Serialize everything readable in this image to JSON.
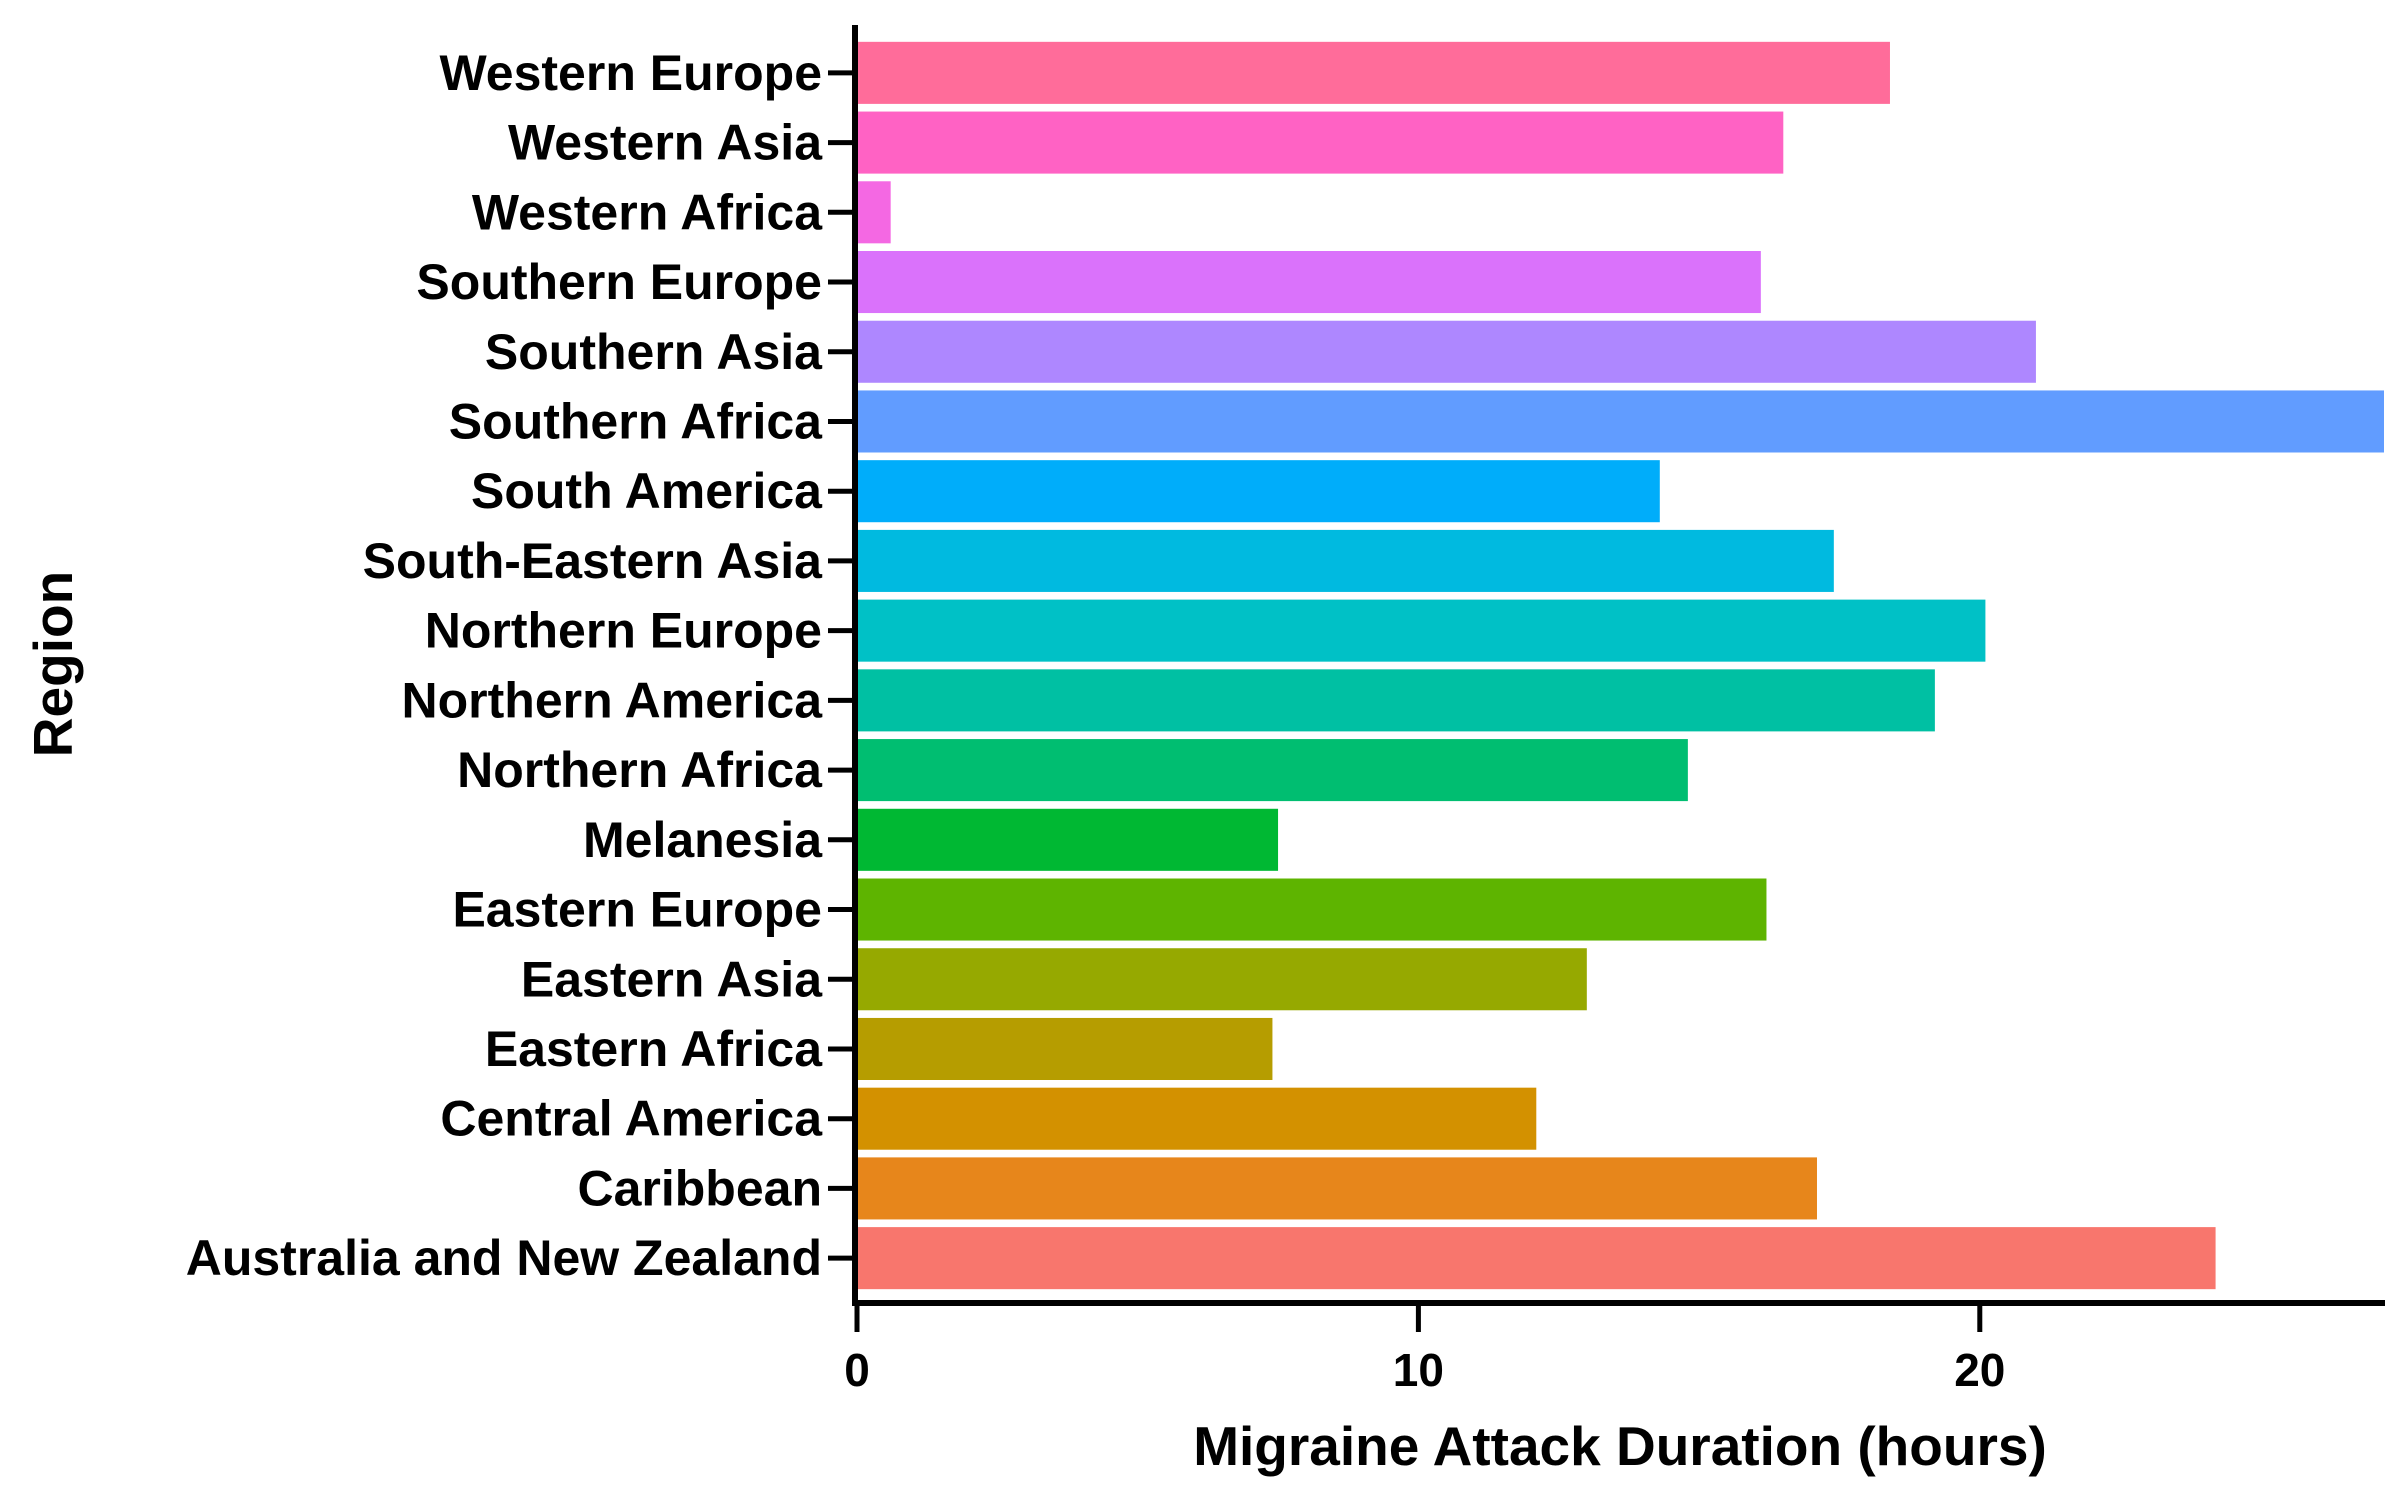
{
  "chart_data": {
    "type": "bar",
    "orientation": "horizontal",
    "xlabel": "Migraine Attack Duration (hours)",
    "ylabel": "Region",
    "xlim": [
      0,
      27.2
    ],
    "x_ticks": [
      0,
      10,
      20
    ],
    "grid": false,
    "legend": "none",
    "categories": [
      "Western Europe",
      "Western Asia",
      "Western Africa",
      "Southern Europe",
      "Southern Asia",
      "Southern Africa",
      "South America",
      "South-Eastern Asia",
      "Northern Europe",
      "Northern America",
      "Northern Africa",
      "Melanesia",
      "Eastern Europe",
      "Eastern Asia",
      "Eastern Africa",
      "Central America",
      "Caribbean",
      "Australia and New Zealand"
    ],
    "values": [
      18.4,
      16.5,
      0.6,
      16.1,
      21.0,
      27.2,
      14.3,
      17.4,
      20.1,
      19.2,
      14.8,
      7.5,
      16.2,
      13.0,
      7.4,
      12.1,
      17.1,
      24.2
    ],
    "colors": [
      "#FF6C9A",
      "#FF62C4",
      "#F468E3",
      "#DA72FB",
      "#AE87FF",
      "#619CFF",
      "#00ADFA",
      "#00BAE0",
      "#00C1C6",
      "#00C0A3",
      "#00BE71",
      "#00B833",
      "#5EB400",
      "#96A900",
      "#B69D00",
      "#D39100",
      "#E7861B",
      "#F8766D"
    ]
  }
}
